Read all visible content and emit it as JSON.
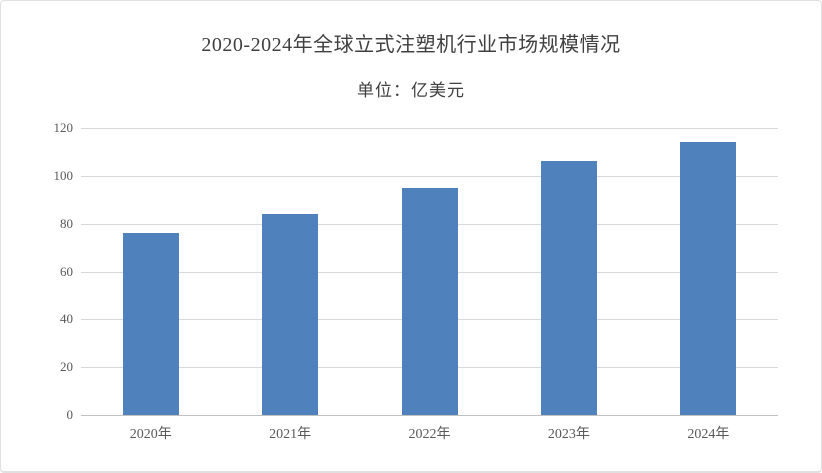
{
  "page": {
    "background": "#ffffff",
    "border_color": "#e0e0e0"
  },
  "chart_data": {
    "type": "bar",
    "title": "2020-2024年全球立式注塑机行业市场规模情况",
    "unit_label": "单位：亿美元",
    "categories": [
      "2020年",
      "2021年",
      "2022年",
      "2023年",
      "2024年"
    ],
    "values": [
      76,
      84,
      95,
      106,
      114
    ],
    "xlabel": "",
    "ylabel": "",
    "ylim": [
      0,
      120
    ],
    "yticks": [
      0,
      20,
      40,
      60,
      80,
      100,
      120
    ],
    "grid": "horizontal-only",
    "legend": "none",
    "colors": {
      "bar": "#4f81bd",
      "gridline": "#d9d9d9",
      "axis_line": "#c0c0c0",
      "title_text": "#404040",
      "tick_text": "#595959"
    }
  }
}
